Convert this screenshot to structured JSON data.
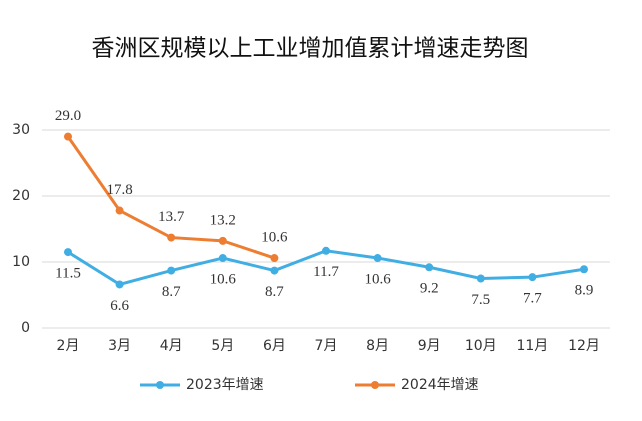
{
  "chart_data": {
    "type": "line",
    "title": "香洲区规模以上工业增加值累计增速走势图",
    "categories": [
      "2月",
      "3月",
      "4月",
      "5月",
      "6月",
      "7月",
      "8月",
      "9月",
      "10月",
      "11月",
      "12月"
    ],
    "series": [
      {
        "name": "2023年增速",
        "color": "#41aee3",
        "values": [
          11.5,
          6.6,
          8.7,
          10.6,
          8.7,
          11.7,
          10.6,
          9.2,
          7.5,
          7.7,
          8.9
        ]
      },
      {
        "name": "2024年增速",
        "color": "#ed7d31",
        "values": [
          29.0,
          17.8,
          13.7,
          13.2,
          10.6,
          null,
          null,
          null,
          null,
          null,
          null
        ],
        "value_labels": [
          "29.0",
          "17.8",
          "13.7",
          "13.2",
          "10.6",
          null,
          null,
          null,
          null,
          null,
          null
        ]
      }
    ],
    "ylim": [
      0,
      30
    ],
    "yticks": [
      0,
      10,
      20,
      30
    ],
    "grid": true,
    "legend": "bottom"
  }
}
